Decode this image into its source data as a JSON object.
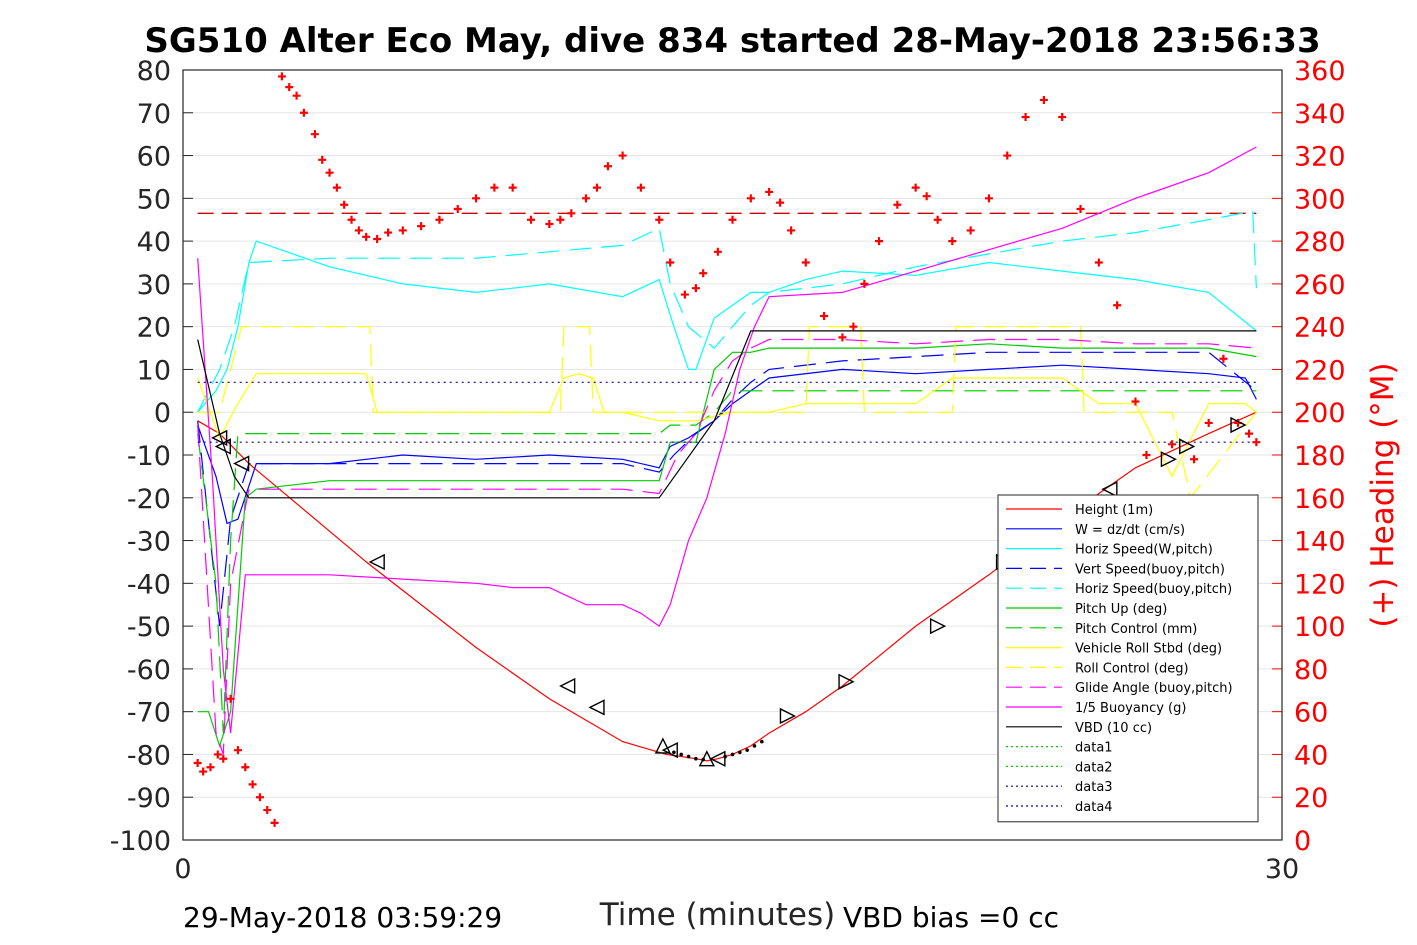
{
  "chart_data": {
    "type": "line",
    "title": "SG510 Alter Eco May, dive 834 started 28-May-2018 23:56:33",
    "xlabel": "Time (minutes)",
    "ylabel": "",
    "ylabel_right": "(+) Heading (°M)",
    "xlim": [
      0,
      30
    ],
    "ylim": [
      -100,
      80
    ],
    "ylim_right": [
      0,
      360
    ],
    "x_ticks": [
      "0",
      "30"
    ],
    "y_ticks": [
      "80",
      "70",
      "60",
      "50",
      "40",
      "30",
      "20",
      "10",
      "0",
      "-10",
      "-20",
      "-30",
      "-40",
      "-50",
      "-60",
      "-70",
      "-80",
      "-90",
      "-100"
    ],
    "y_ticks_right": [
      "360",
      "340",
      "320",
      "300",
      "280",
      "260",
      "240",
      "220",
      "200",
      "180",
      "160",
      "140",
      "120",
      "100",
      "80",
      "60",
      "40",
      "20",
      "0"
    ],
    "grid": "horizontal",
    "legend_placement": "bottom-right",
    "footer_left": "29-May-2018 03:59:29",
    "footer_right": "VBD bias =0 cc",
    "series": [
      {
        "name": "Height (1m)",
        "color": "#ff0000",
        "style": "solid",
        "x": [
          0.4,
          1.0,
          1.8,
          5,
          8,
          10,
          12,
          13.2,
          14,
          14.3,
          14.6,
          15,
          15.5,
          16,
          17,
          18,
          20,
          22,
          24,
          26,
          28,
          29.3
        ],
        "y": [
          -2,
          -5,
          -12,
          -35,
          -55,
          -67,
          -77,
          -80,
          -81,
          -81.5,
          -81,
          -80,
          -78,
          -75,
          -70,
          -64,
          -50,
          -38,
          -25,
          -13,
          -5,
          0
        ]
      },
      {
        "name": "W = dz/dt (cm/s)",
        "color": "#0000ff",
        "style": "solid",
        "x": [
          0.4,
          0.9,
          1.2,
          1.5,
          2,
          4,
          6,
          8,
          10,
          12,
          13,
          13.3,
          13.8,
          14.5,
          15,
          15.5,
          16,
          18,
          20,
          22,
          24,
          26,
          28,
          29,
          29.3
        ],
        "y": [
          -3,
          -15,
          -26,
          -25,
          -12,
          -12,
          -10,
          -11,
          -10,
          -11,
          -13,
          -8,
          -6,
          -2,
          2,
          5,
          8,
          10,
          9,
          10,
          11,
          10,
          9,
          8,
          3
        ]
      },
      {
        "name": "Horiz Speed(W,pitch)",
        "color": "#00ffff",
        "style": "solid",
        "x": [
          0.4,
          0.9,
          1.2,
          1.5,
          1.8,
          2,
          3,
          4,
          6,
          8,
          10,
          12,
          13,
          13.4,
          13.8,
          14,
          14.5,
          15,
          15.5,
          16,
          17,
          18,
          20,
          22,
          24,
          26,
          28,
          29.3
        ],
        "y": [
          0,
          5,
          10,
          20,
          35,
          40,
          37,
          34,
          30,
          28,
          30,
          27,
          31,
          20,
          10,
          10,
          22,
          25,
          28,
          28,
          31,
          33,
          32,
          35,
          33,
          31,
          28,
          19
        ]
      },
      {
        "name": "Vert Speed(buoy,pitch)",
        "color": "#0000ff",
        "style": "dashed",
        "x": [
          0.4,
          1.0,
          1.3,
          1.8,
          3,
          6,
          9,
          12,
          13,
          13.4,
          14,
          14.5,
          15,
          15.5,
          16,
          18,
          20,
          22,
          24,
          26,
          28,
          29.3
        ],
        "y": [
          -2,
          -50,
          -25,
          -12,
          -12,
          -12,
          -12,
          -12,
          -14,
          -10,
          -5,
          -2,
          3,
          7,
          10,
          12,
          13,
          14,
          14,
          14,
          14,
          5
        ]
      },
      {
        "name": "Horiz Speed(buoy,pitch)",
        "color": "#00ffff",
        "style": "dashed",
        "x": [
          0.4,
          1.0,
          1.4,
          1.8,
          4,
          8,
          12,
          13,
          13.3,
          13.8,
          14.5,
          15,
          15.5,
          16,
          18,
          20,
          22,
          24,
          26,
          28,
          29.2,
          29.3
        ],
        "y": [
          0,
          10,
          20,
          35,
          36,
          36,
          39,
          43,
          30,
          20,
          15,
          20,
          25,
          28,
          30,
          34,
          37,
          40,
          42,
          45,
          47,
          29
        ]
      },
      {
        "name": "Pitch Up (deg)",
        "color": "#00cc00",
        "style": "solid",
        "x": [
          0.4,
          0.7,
          1.0,
          1.3,
          1.7,
          2,
          4,
          6,
          8,
          10,
          12,
          13,
          13.3,
          14,
          14.5,
          15,
          15.5,
          16,
          18,
          20,
          22,
          24,
          26,
          28,
          29.3
        ],
        "y": [
          -70,
          -70,
          -78,
          -70,
          -20,
          -18,
          -16,
          -16,
          -16,
          -16,
          -16,
          -16,
          -7,
          -7,
          10,
          14,
          14,
          15,
          15,
          15,
          16,
          15,
          15,
          15,
          13
        ]
      },
      {
        "name": "Pitch Control (mm)",
        "color": "#00cc00",
        "style": "dashed",
        "x": [
          0.4,
          0.9,
          1.1,
          1.3,
          1.5,
          3,
          8,
          13,
          13.3,
          14,
          14.5,
          15,
          16,
          20,
          24,
          29.3
        ],
        "y": [
          -5,
          -40,
          -75,
          -30,
          -5,
          -5,
          -5,
          -5,
          -3,
          -3,
          0,
          5,
          5,
          5,
          5,
          5
        ]
      },
      {
        "name": "Vehicle Roll Stbd (deg)",
        "color": "#ffff00",
        "style": "solid",
        "x": [
          0.4,
          1.0,
          1.5,
          2,
          4,
          5,
          5.3,
          8,
          10,
          10.4,
          10.8,
          11.2,
          11.5,
          12,
          13,
          14,
          15,
          16,
          17,
          18,
          20,
          21,
          22,
          24,
          25,
          26,
          27,
          28,
          29,
          29.3
        ],
        "y": [
          8,
          -6,
          2,
          9,
          9,
          9,
          0,
          0,
          0,
          8,
          9,
          8,
          0,
          0,
          -2,
          -2,
          0,
          0,
          2,
          2,
          2,
          8,
          8,
          8,
          2,
          2,
          -15,
          2,
          2,
          0
        ]
      },
      {
        "name": "Roll Control (deg)",
        "color": "#ffff00",
        "style": "dashed",
        "x": [
          0.4,
          1.0,
          1.6,
          1.7,
          5.1,
          5.2,
          10.3,
          10.4,
          11.1,
          11.2,
          13,
          14,
          14.5,
          16,
          17,
          17.1,
          18.5,
          18.6,
          21,
          21.1,
          24.5,
          24.6,
          27,
          27.5,
          29.3
        ],
        "y": [
          0,
          0,
          20,
          20,
          20,
          0,
          0,
          20,
          20,
          0,
          0,
          0,
          0,
          0,
          0,
          20,
          20,
          0,
          0,
          20,
          20,
          0,
          0,
          -20,
          0
        ]
      },
      {
        "name": "Glide Angle (buoy,pitch)",
        "color": "#ff00ff",
        "style": "dashed",
        "x": [
          0.4,
          0.9,
          1.1,
          1.3,
          1.8,
          3,
          6,
          9,
          12,
          13,
          13.5,
          14,
          14.5,
          15,
          15.5,
          16,
          18,
          20,
          22,
          24,
          26,
          28,
          29.3
        ],
        "y": [
          -3,
          -75,
          -80,
          -40,
          -18,
          -18,
          -18,
          -18,
          -18,
          -19,
          -10,
          -5,
          5,
          12,
          15,
          17,
          17,
          16,
          17,
          17,
          16,
          16,
          15
        ]
      },
      {
        "name": "1/5 Buoyancy (g)",
        "color": "#ff00ff",
        "style": "solid",
        "x": [
          0.4,
          0.8,
          1.1,
          1.3,
          1.7,
          2,
          4,
          6,
          8,
          9,
          10,
          11,
          12,
          12.5,
          13,
          13.3,
          13.8,
          14.3,
          14.8,
          15.2,
          15.6,
          16,
          18,
          20,
          22,
          24,
          26,
          28,
          29.3
        ],
        "y": [
          36,
          -15,
          -60,
          -75,
          -38,
          -38,
          -38,
          -39,
          -40,
          -41,
          -41,
          -45,
          -45,
          -47,
          -50,
          -45,
          -30,
          -20,
          -5,
          10,
          20,
          27,
          28,
          33,
          38,
          43,
          50,
          56,
          62
        ]
      },
      {
        "name": "VBD (10 cc)",
        "color": "#000000",
        "style": "solid",
        "x": [
          0.4,
          1.0,
          1.4,
          1.8,
          8,
          13,
          14.5,
          15.5,
          16,
          29.3
        ],
        "y": [
          17,
          -5,
          -15,
          -20,
          -20,
          -20,
          -2,
          19,
          19,
          19
        ]
      },
      {
        "name": "data1",
        "color": "#00cc00",
        "style": "dotted",
        "x": [],
        "y": []
      },
      {
        "name": "data2",
        "color": "#00cc00",
        "style": "dotted",
        "x": [],
        "y": []
      },
      {
        "name": "data3",
        "color": "#0000aa",
        "style": "dotted",
        "x": [
          0.4,
          29.3
        ],
        "y": [
          7,
          7
        ]
      },
      {
        "name": "data4",
        "color": "#0000aa",
        "style": "dotted",
        "x": [
          0.4,
          29.3
        ],
        "y": [
          -7,
          -7
        ]
      }
    ],
    "heading_series": {
      "axis": "right",
      "marker": "+",
      "color": "#ff0000",
      "x": [
        0.4,
        0.55,
        0.75,
        0.95,
        1.1,
        1.3,
        1.5,
        1.7,
        1.9,
        2.1,
        2.3,
        2.5,
        2.7,
        2.9,
        3.1,
        3.3,
        3.6,
        3.8,
        4.0,
        4.2,
        4.4,
        4.6,
        4.8,
        5.0,
        5.3,
        5.6,
        6.0,
        6.5,
        7.0,
        7.5,
        8.0,
        8.5,
        9.0,
        9.5,
        10.0,
        10.3,
        10.6,
        11.0,
        11.3,
        11.6,
        12.0,
        12.5,
        13.0,
        13.3,
        13.7,
        14.0,
        14.2,
        14.6,
        15.0,
        15.5,
        16.0,
        16.3,
        16.6,
        17.0,
        17.5,
        18.0,
        18.3,
        18.6,
        19.0,
        19.5,
        20.0,
        20.3,
        20.6,
        21.0,
        21.5,
        22.0,
        22.5,
        23.0,
        23.5,
        24.0,
        24.5,
        25.0,
        25.5,
        26.0,
        26.3,
        26.6,
        27.0,
        27.3,
        27.6,
        28.0,
        28.4,
        28.8,
        29.1,
        29.3
      ],
      "y": [
        36,
        32,
        34,
        40,
        38,
        66,
        42,
        34,
        26,
        20,
        14,
        8,
        357,
        352,
        348,
        340,
        330,
        318,
        312,
        305,
        297,
        290,
        285,
        282,
        281,
        284,
        285,
        287,
        290,
        295,
        300,
        305,
        305,
        290,
        288,
        290,
        293,
        300,
        305,
        315,
        320,
        305,
        290,
        270,
        255,
        258,
        265,
        275,
        290,
        300,
        303,
        298,
        285,
        270,
        245,
        235,
        240,
        260,
        280,
        297,
        305,
        301,
        290,
        280,
        285,
        300,
        320,
        338,
        346,
        338,
        295,
        270,
        250,
        205,
        180,
        155,
        185,
        145,
        178,
        195,
        225,
        195,
        190,
        186
      ]
    },
    "threshold_line": {
      "axis": "right",
      "value": 293,
      "color": "#cc0000",
      "style": "dashed"
    },
    "triangle_markers": {
      "color": "#000000",
      "points": [
        [
          1.0,
          -6,
          "l"
        ],
        [
          1.1,
          -8,
          "l"
        ],
        [
          1.6,
          -12,
          "l"
        ],
        [
          5.3,
          -35,
          "l"
        ],
        [
          10.5,
          -64,
          "l"
        ],
        [
          11.3,
          -69,
          "l"
        ],
        [
          13.1,
          -78,
          "u"
        ],
        [
          13.3,
          -79,
          "l"
        ],
        [
          14.3,
          -81,
          "u"
        ],
        [
          14.6,
          -81,
          "l"
        ],
        [
          16.5,
          -71,
          "r"
        ],
        [
          18.1,
          -63,
          "r"
        ],
        [
          20.6,
          -50,
          "r"
        ],
        [
          22.4,
          -35,
          "r"
        ],
        [
          25.3,
          -18,
          "l"
        ],
        [
          26.9,
          -11,
          "r"
        ],
        [
          27.4,
          -8,
          "r"
        ],
        [
          28.8,
          -3,
          "r"
        ]
      ]
    },
    "dot_markers": {
      "color": "#000000",
      "x": [
        13.4,
        13.6,
        13.8,
        14.0,
        14.2,
        14.8,
        15.0,
        15.2,
        15.4,
        15.6,
        15.8
      ],
      "y": [
        -79.5,
        -80,
        -80.5,
        -81,
        -81.2,
        -80.5,
        -80,
        -79.5,
        -79,
        -78,
        -77
      ]
    }
  }
}
